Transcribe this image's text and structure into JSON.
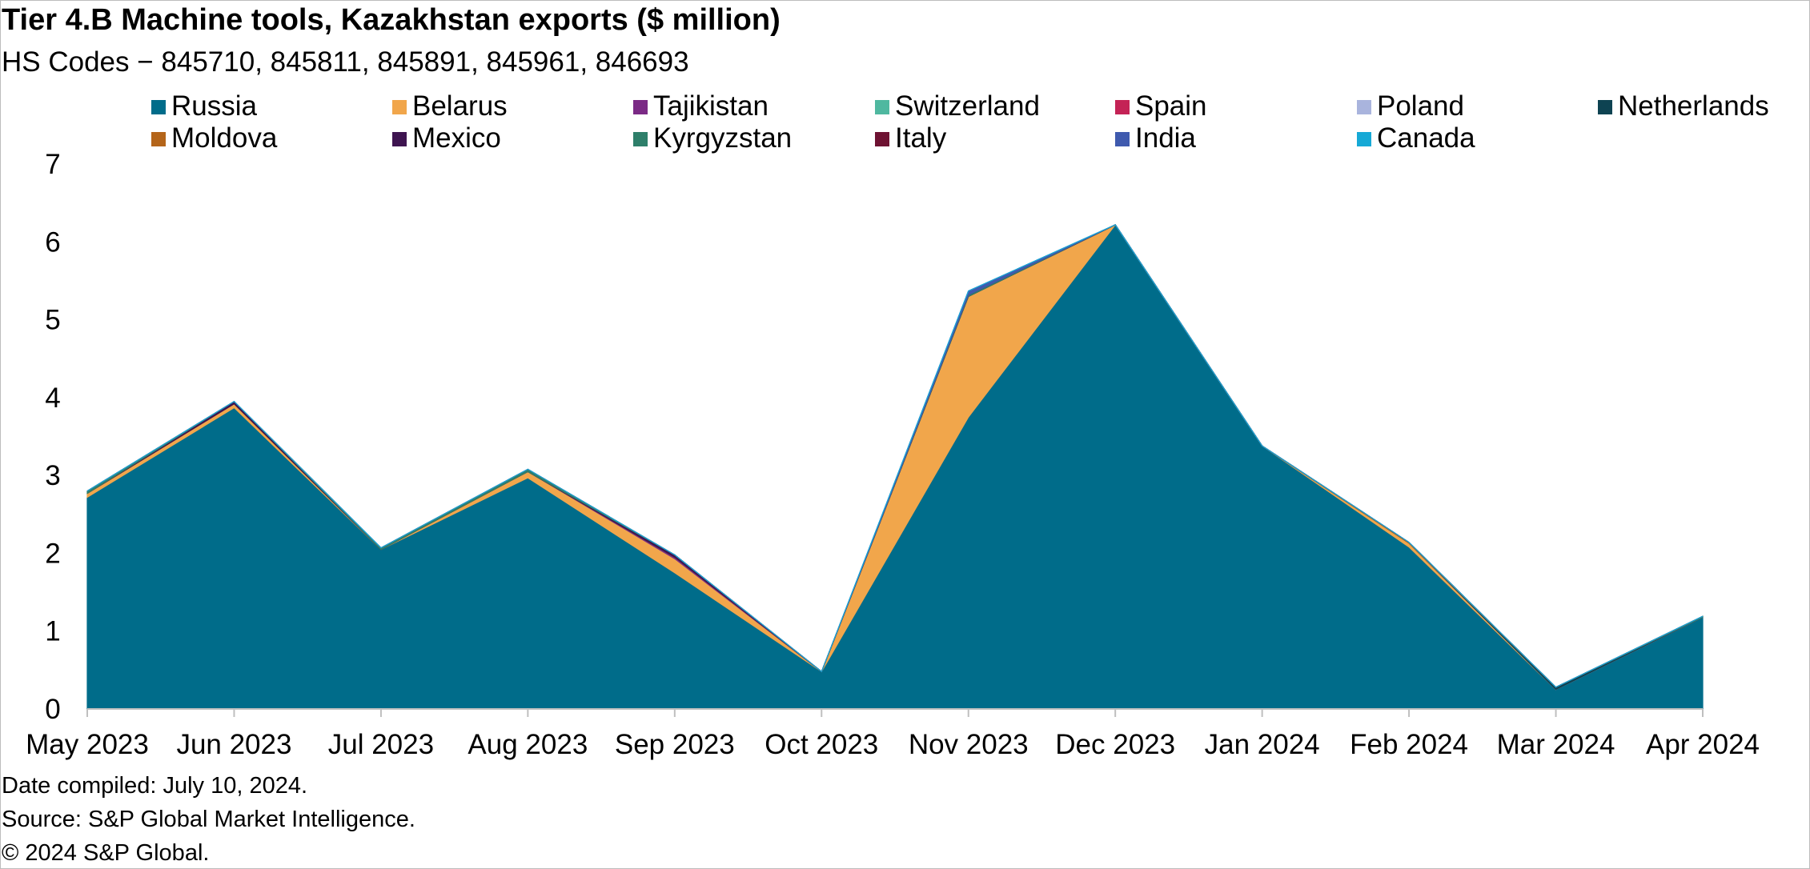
{
  "chart_data": {
    "type": "area",
    "stacked": true,
    "title": "Tier 4.B Machine tools, Kazakhstan exports ($ million)",
    "subtitle": "HS Codes − 845710, 845811, 845891, 845961, 846693",
    "xlabel": "",
    "ylabel": "",
    "ylim": [
      0,
      7
    ],
    "yticks": [
      "0",
      "1",
      "2",
      "3",
      "4",
      "5",
      "6",
      "7"
    ],
    "categories": [
      "May 2023",
      "Jun 2023",
      "Jul 2023",
      "Aug 2023",
      "Sep 2023",
      "Oct 2023",
      "Nov 2023",
      "Dec 2023",
      "Jan 2024",
      "Feb 2024",
      "Mar 2024",
      "Apr 2024"
    ],
    "grid": false,
    "legend_position": "top",
    "series": [
      {
        "name": "Russia",
        "color": "#006c8a",
        "values": [
          2.72,
          3.87,
          2.05,
          2.97,
          1.75,
          0.48,
          3.75,
          6.22,
          3.38,
          2.08,
          0.25,
          1.18
        ]
      },
      {
        "name": "Belarus",
        "color": "#f1a64b",
        "values": [
          0.05,
          0.05,
          0.0,
          0.08,
          0.18,
          0.0,
          1.55,
          0.0,
          0.0,
          0.05,
          0.0,
          0.0
        ]
      },
      {
        "name": "Tajikistan",
        "color": "#7b2a85",
        "values": [
          0.0,
          0.0,
          0.0,
          0.0,
          0.02,
          0.0,
          0.0,
          0.0,
          0.0,
          0.0,
          0.0,
          0.0
        ]
      },
      {
        "name": "Switzerland",
        "color": "#4fb8a0",
        "values": [
          0.0,
          0.0,
          0.0,
          0.0,
          0.0,
          0.0,
          0.0,
          0.0,
          0.0,
          0.0,
          0.0,
          0.0
        ]
      },
      {
        "name": "Spain",
        "color": "#c42356",
        "values": [
          0.0,
          0.0,
          0.0,
          0.0,
          0.0,
          0.0,
          0.0,
          0.0,
          0.0,
          0.0,
          0.0,
          0.0
        ]
      },
      {
        "name": "Poland",
        "color": "#a9b4dd",
        "values": [
          0.0,
          0.0,
          0.0,
          0.0,
          0.0,
          0.0,
          0.0,
          0.0,
          0.0,
          0.0,
          0.0,
          0.0
        ]
      },
      {
        "name": "Netherlands",
        "color": "#0e4352",
        "values": [
          0.0,
          0.0,
          0.0,
          0.0,
          0.0,
          0.0,
          0.0,
          0.0,
          0.0,
          0.0,
          0.03,
          0.0
        ]
      },
      {
        "name": "Moldova",
        "color": "#b4651a",
        "values": [
          0.0,
          0.0,
          0.0,
          0.0,
          0.0,
          0.0,
          0.0,
          0.0,
          0.0,
          0.01,
          0.0,
          0.0
        ]
      },
      {
        "name": "Mexico",
        "color": "#3e1450",
        "values": [
          0.0,
          0.03,
          0.0,
          0.0,
          0.03,
          0.0,
          0.0,
          0.0,
          0.0,
          0.0,
          0.0,
          0.0
        ]
      },
      {
        "name": "Kyrgyzstan",
        "color": "#2e7f6a",
        "values": [
          0.03,
          0.0,
          0.02,
          0.03,
          0.0,
          0.0,
          0.02,
          0.0,
          0.0,
          0.0,
          0.0,
          0.01
        ]
      },
      {
        "name": "Italy",
        "color": "#6e1232",
        "values": [
          0.0,
          0.0,
          0.0,
          0.0,
          0.0,
          0.0,
          0.0,
          0.0,
          0.0,
          0.0,
          0.0,
          0.0
        ]
      },
      {
        "name": "India",
        "color": "#3f5aae",
        "values": [
          0.0,
          0.0,
          0.0,
          0.0,
          0.0,
          0.0,
          0.05,
          0.0,
          0.0,
          0.0,
          0.0,
          0.0
        ]
      },
      {
        "name": "Canada",
        "color": "#16a9d6",
        "values": [
          0.0,
          0.0,
          0.0,
          0.0,
          0.0,
          0.0,
          0.0,
          0.0,
          0.0,
          0.0,
          0.0,
          0.0
        ]
      }
    ]
  },
  "footer": {
    "date_compiled": "Date compiled: July 10, 2024.",
    "source": "Source: S&P Global Market Intelligence.",
    "copyright": "© 2024 S&P Global."
  }
}
